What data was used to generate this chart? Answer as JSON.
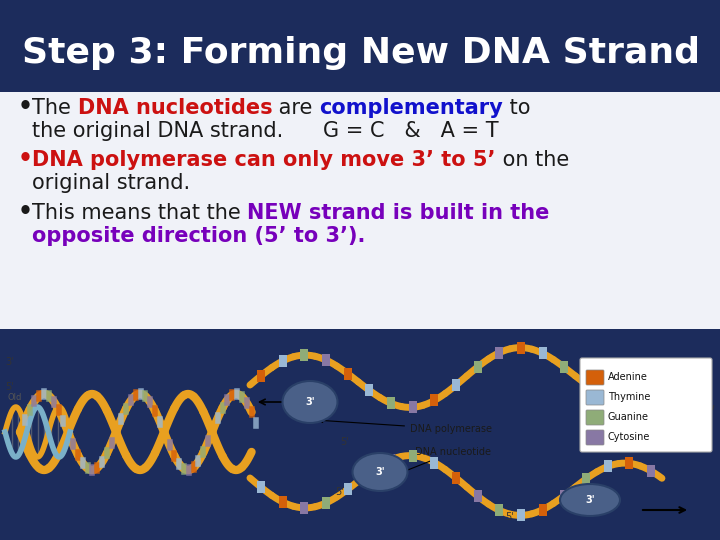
{
  "title": "Step 3: Forming New DNA Strand",
  "title_color": "#ffffff",
  "title_bg_top": "#1c2c5c",
  "title_bg_bottom": "#2a3f7a",
  "content_bg": "#f5f5f5",
  "image_bg": "#ffffff",
  "bullet1_parts": [
    {
      "text": "The ",
      "color": "#1a1a1a",
      "bold": false,
      "size": 15
    },
    {
      "text": "DNA nucleotides",
      "color": "#cc1111",
      "bold": true,
      "size": 15
    },
    {
      "text": " are ",
      "color": "#1a1a1a",
      "bold": false,
      "size": 15
    },
    {
      "text": "complementary",
      "color": "#1111cc",
      "bold": true,
      "size": 15
    },
    {
      "text": " to",
      "color": "#1a1a1a",
      "bold": false,
      "size": 15
    }
  ],
  "bullet1_line2": "the original DNA strand.      G = C   &   A = T",
  "bullet2_parts": [
    {
      "text": "DNA polymerase can only move 3’ to 5’",
      "color": "#cc1111",
      "bold": true,
      "size": 15
    },
    {
      "text": " on the",
      "color": "#1a1a1a",
      "bold": false,
      "size": 15
    }
  ],
  "bullet2_line2": "original strand.",
  "bullet3_parts": [
    {
      "text": "This means that the ",
      "color": "#1a1a1a",
      "bold": false,
      "size": 15
    },
    {
      "text": "NEW strand is built in the",
      "color": "#7700bb",
      "bold": true,
      "size": 15
    }
  ],
  "bullet3_line2": "opposite direction (5’ to 3’).",
  "bullet3_line2_color": "#7700bb",
  "font_family": "Arial",
  "title_fontsize": 26
}
